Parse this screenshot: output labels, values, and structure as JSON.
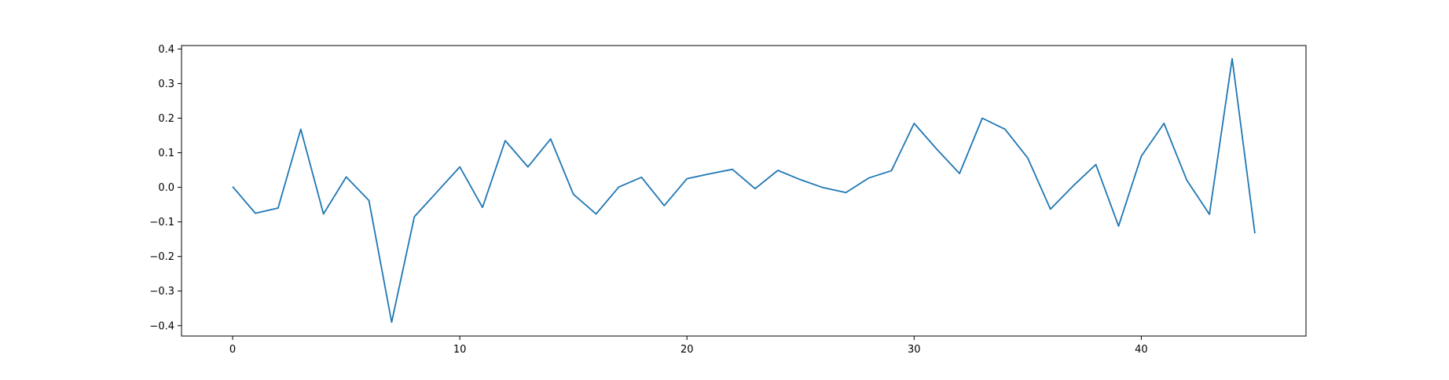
{
  "chart_data": {
    "type": "line",
    "title": "",
    "xlabel": "",
    "ylabel": "",
    "xlim": [
      -2.25,
      47.25
    ],
    "ylim": [
      -0.43,
      0.41
    ],
    "grid": false,
    "x_ticks": [
      0,
      10,
      20,
      30,
      40
    ],
    "x_tick_labels": [
      "0",
      "10",
      "20",
      "30",
      "40"
    ],
    "y_ticks": [
      -0.4,
      -0.3,
      -0.2,
      -0.1,
      0.0,
      0.1,
      0.2,
      0.3,
      0.4
    ],
    "y_tick_labels": [
      "−0.4",
      "−0.3",
      "−0.2",
      "−0.1",
      "0.0",
      "0.1",
      "0.2",
      "0.3",
      "0.4"
    ],
    "series": [
      {
        "color": "#1f77b4",
        "x": [
          0,
          1,
          2,
          3,
          4,
          5,
          6,
          7,
          8,
          9,
          10,
          11,
          12,
          13,
          14,
          15,
          16,
          17,
          18,
          19,
          20,
          21,
          22,
          23,
          24,
          25,
          26,
          27,
          28,
          29,
          30,
          31,
          32,
          33,
          34,
          35,
          36,
          37,
          38,
          39,
          40,
          41,
          42,
          43,
          44,
          45
        ],
        "values": [
          0.002,
          -0.075,
          -0.06,
          0.168,
          -0.077,
          0.03,
          -0.038,
          -0.39,
          -0.085,
          -0.013,
          0.059,
          -0.058,
          0.135,
          0.059,
          0.14,
          -0.02,
          -0.077,
          0.001,
          0.029,
          -0.053,
          0.025,
          0.039,
          0.052,
          -0.004,
          0.049,
          0.022,
          -0.001,
          -0.015,
          0.027,
          0.048,
          0.185,
          0.11,
          0.04,
          0.2,
          0.168,
          0.085,
          -0.063,
          0.004,
          0.066,
          -0.112,
          0.09,
          0.185,
          0.021,
          -0.078,
          0.372,
          -0.133
        ]
      }
    ]
  }
}
